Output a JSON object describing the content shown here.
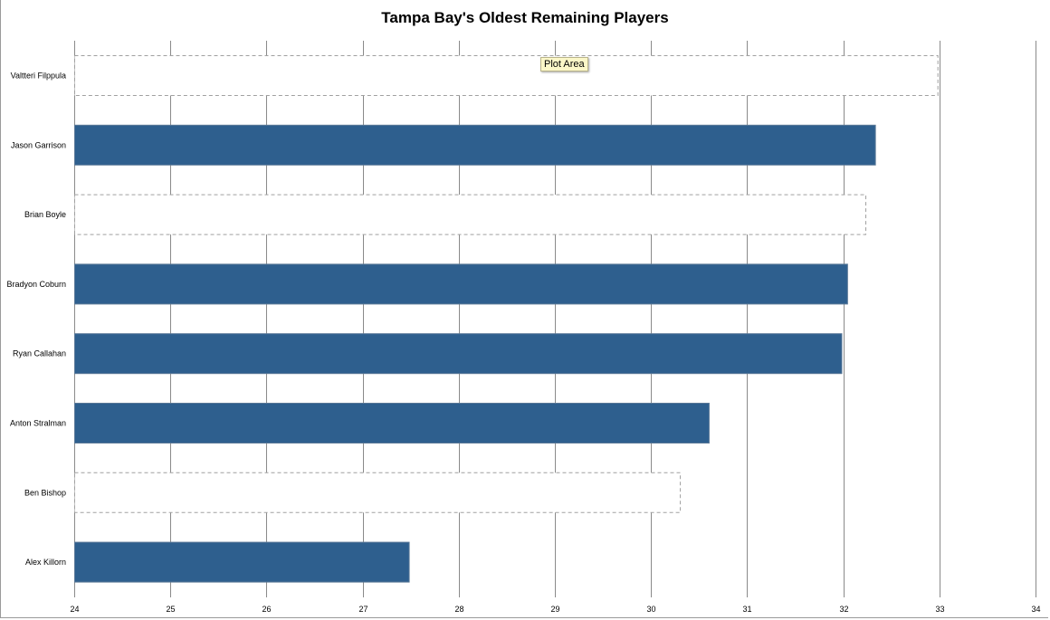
{
  "chart_data": {
    "type": "bar",
    "orientation": "horizontal",
    "title": "Tampa Bay's Oldest Remaining Players",
    "categories": [
      "Valtteri Filppula",
      "Jason Garrison",
      "Brian Boyle",
      "Bradyon Coburn",
      "Ryan Callahan",
      "Anton Stralman",
      "Ben Bishop",
      "Alex Killorn"
    ],
    "values": [
      32.98,
      32.33,
      32.23,
      32.04,
      31.98,
      30.6,
      30.3,
      27.48
    ],
    "highlighted": [
      false,
      true,
      false,
      true,
      true,
      true,
      false,
      true
    ],
    "xlim": [
      24,
      34
    ],
    "xticks": [
      "24",
      "25",
      "26",
      "27",
      "28",
      "29",
      "30",
      "31",
      "32",
      "33",
      "34"
    ],
    "grid": true,
    "legend": "none",
    "colors": {
      "bar": "#2e5f8e",
      "bar_border": "#5a7897",
      "unhighlighted_border": "#a0a0a0",
      "grid": "#8a8a8a"
    }
  },
  "tooltip": {
    "label": "Plot Area"
  }
}
